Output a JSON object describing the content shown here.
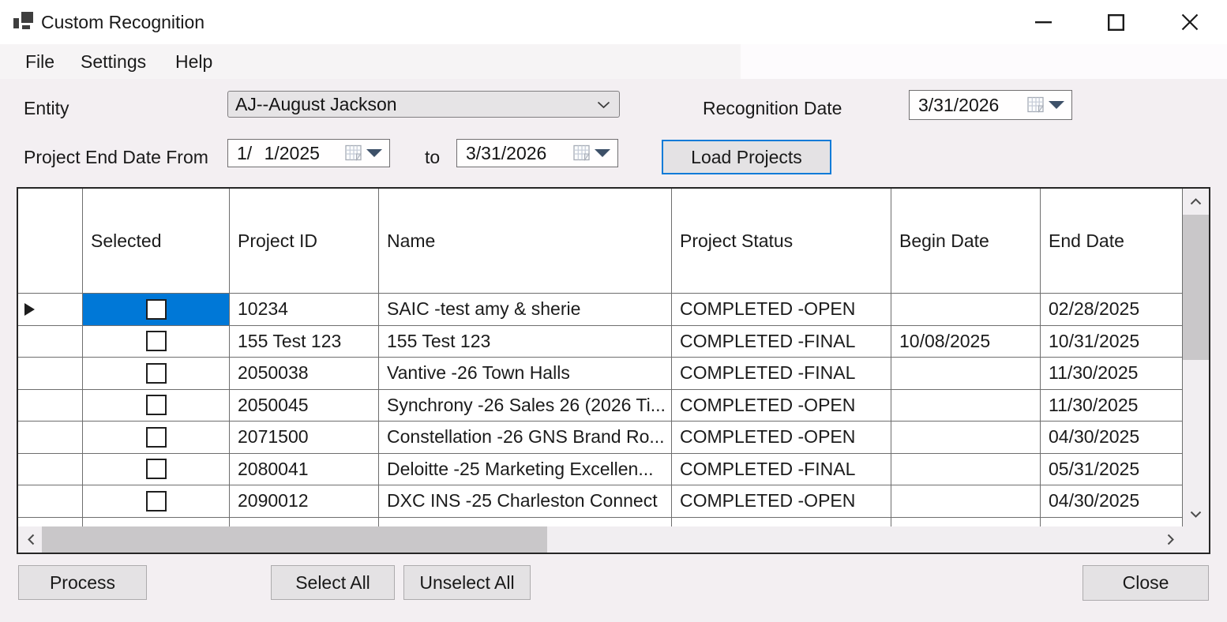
{
  "window": {
    "title": "Custom Recognition"
  },
  "titlebar": {
    "minimize_icon": "minimize",
    "maximize_icon": "maximize",
    "close_icon": "close"
  },
  "menu": {
    "items": [
      "File",
      "Settings",
      "Help"
    ]
  },
  "form": {
    "entity_label": "Entity",
    "entity_value": "AJ--August Jackson",
    "recognition_date_label": "Recognition Date",
    "recognition_date_value": "3/31/2026",
    "date_range_label": "Project End Date From",
    "date_from_value": "1/ 1/2025",
    "to_label": "to",
    "date_to_value": "3/31/2026",
    "load_projects_label": "Load Projects"
  },
  "grid": {
    "columns": [
      "Selected",
      "Project ID",
      "Name",
      "Project Status",
      "Begin Date",
      "End Date"
    ],
    "rows": [
      {
        "checked": false,
        "current": true,
        "highlighted": true,
        "project_id": "10234",
        "name": "SAIC -test amy & sherie",
        "project_status": "COMPLETED -OPEN",
        "begin_date": "",
        "end_date": "02/28/2025"
      },
      {
        "checked": false,
        "current": false,
        "highlighted": false,
        "project_id": "155 Test 123",
        "name": "155 Test 123",
        "project_status": "COMPLETED -FINAL",
        "begin_date": "10/08/2025",
        "end_date": "10/31/2025"
      },
      {
        "checked": false,
        "current": false,
        "highlighted": false,
        "project_id": "2050038",
        "name": "Vantive -26 Town Halls",
        "project_status": "COMPLETED -FINAL",
        "begin_date": "",
        "end_date": "11/30/2025"
      },
      {
        "checked": false,
        "current": false,
        "highlighted": false,
        "project_id": "2050045",
        "name": "Synchrony -26 Sales 26 (2026 Ti...",
        "project_status": "COMPLETED -OPEN",
        "begin_date": "",
        "end_date": "11/30/2025"
      },
      {
        "checked": false,
        "current": false,
        "highlighted": false,
        "project_id": "2071500",
        "name": "Constellation -26 GNS Brand Ro...",
        "project_status": "COMPLETED -OPEN",
        "begin_date": "",
        "end_date": "04/30/2025"
      },
      {
        "checked": false,
        "current": false,
        "highlighted": false,
        "project_id": "2080041",
        "name": "Deloitte -25 Marketing Excellen...",
        "project_status": "COMPLETED -FINAL",
        "begin_date": "",
        "end_date": "05/31/2025"
      },
      {
        "checked": false,
        "current": false,
        "highlighted": false,
        "project_id": "2090012",
        "name": "DXC INS -25 Charleston Connect",
        "project_status": "COMPLETED -OPEN",
        "begin_date": "",
        "end_date": "04/30/2025"
      }
    ]
  },
  "footer": {
    "process_label": "Process",
    "select_all_label": "Select All",
    "unselect_all_label": "Unselect All",
    "close_label": "Close"
  },
  "colors": {
    "selection_blue": "#0078d7",
    "focus_border_blue": "#0c7bd8",
    "form_background": "#f3eff2",
    "grid_line": "#6e6e6e"
  }
}
